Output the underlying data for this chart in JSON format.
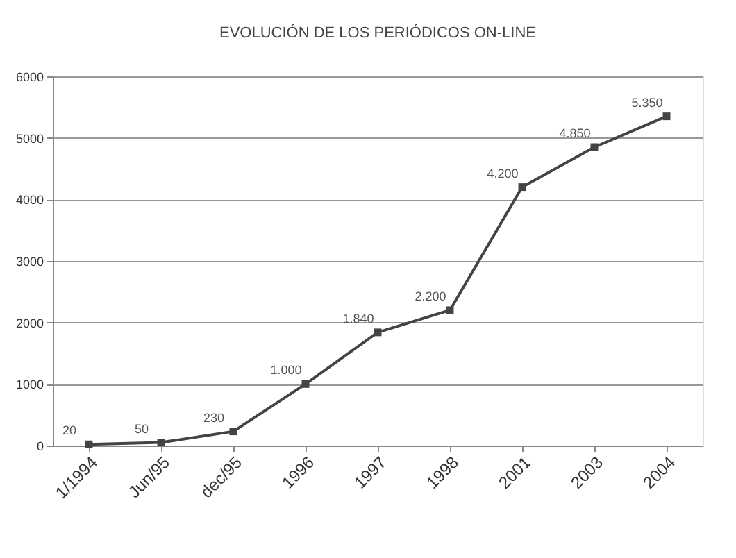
{
  "chart_data": {
    "type": "line",
    "title": "EVOLUCIÓN DE LOS PERIÓDICOS ON-LINE",
    "categories": [
      "1/1994",
      "Jun/95",
      "dec/95",
      "1996",
      "1997",
      "1998",
      "2001",
      "2003",
      "2004"
    ],
    "series": [
      {
        "color": "#444444",
        "values": [
          20,
          50,
          230,
          1000,
          1840,
          2200,
          4200,
          4850,
          5350
        ],
        "value_labels": [
          "20",
          "50",
          "230",
          "1.000",
          "1.840",
          "2.200",
          "4.200",
          "4.850",
          "5.350"
        ]
      }
    ],
    "ylim": [
      0,
      6000
    ],
    "yticks": [
      0,
      1000,
      2000,
      3000,
      4000,
      5000,
      6000
    ],
    "grid": "y",
    "marker": "square",
    "line_style": "solid"
  }
}
